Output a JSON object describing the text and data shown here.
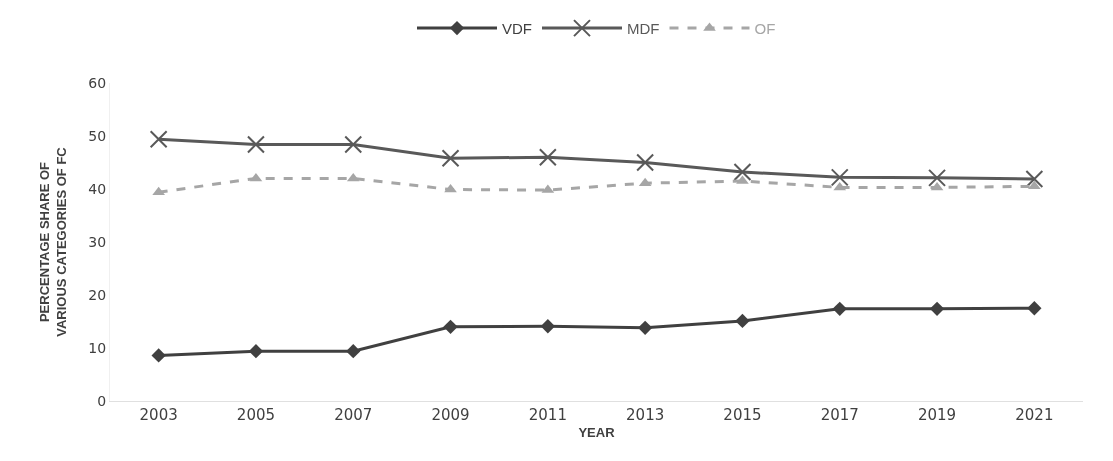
{
  "chart_data": {
    "type": "line",
    "xlabel": "YEAR",
    "ylabel": "PERCENTAGE SHARE OF VARIOUS CATEGORIES OF FC",
    "categories": [
      "2003",
      "2005",
      "2007",
      "2009",
      "2011",
      "2013",
      "2015",
      "2017",
      "2019",
      "2021"
    ],
    "ylim": [
      0,
      60
    ],
    "yticks": [
      0,
      10,
      20,
      30,
      40,
      50,
      60
    ],
    "grid": false,
    "legend": "top",
    "series": [
      {
        "name": "VDF",
        "color": "#404040",
        "marker": "diamond",
        "line_style": "solid",
        "values": [
          8.6,
          9.4,
          9.4,
          14.0,
          14.1,
          13.8,
          15.1,
          17.4,
          17.4,
          17.5
        ]
      },
      {
        "name": "MDF",
        "color": "#595959",
        "marker": "cross",
        "line_style": "solid",
        "values": [
          49.4,
          48.4,
          48.4,
          45.8,
          46.0,
          45.0,
          43.2,
          42.2,
          42.1,
          41.9
        ]
      },
      {
        "name": "OF",
        "color": "#a6a6a6",
        "marker": "triangle",
        "line_style": "dashed",
        "values": [
          39.4,
          42.0,
          42.0,
          39.9,
          39.8,
          41.1,
          41.5,
          40.3,
          40.3,
          40.5
        ]
      }
    ]
  }
}
